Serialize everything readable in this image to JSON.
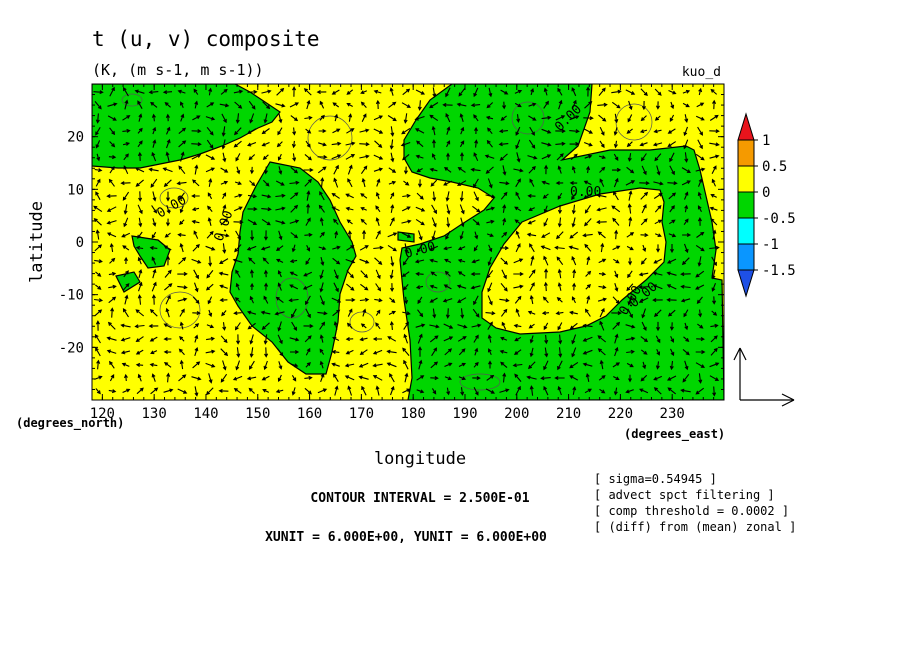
{
  "chart_data": {
    "type": "heatmap",
    "title": "t (u, v) composite",
    "subtitle": "(K, (m s-1, m s-1))",
    "corner_label": "kuo_d",
    "xlabel": "longitude",
    "ylabel": "latitude",
    "x_unit_label": "(degrees_east)",
    "y_unit_label": "(degrees_north)",
    "xlim": [
      118,
      240
    ],
    "ylim": [
      -30,
      30
    ],
    "x_ticks": [
      "120",
      "130",
      "140",
      "150",
      "160",
      "170",
      "180",
      "190",
      "200",
      "210",
      "220",
      "230"
    ],
    "x_tick_values": [
      120,
      130,
      140,
      150,
      160,
      170,
      180,
      190,
      200,
      210,
      220,
      230
    ],
    "y_ticks": [
      "20",
      "10",
      "0",
      "-10",
      "-20"
    ],
    "y_tick_values": [
      20,
      10,
      0,
      -10,
      -20
    ],
    "contour_labels": [
      "0.00",
      "0.00",
      "0.00",
      "0.00",
      "0.00",
      "0.00",
      "0.00"
    ],
    "colorbar": {
      "labels": [
        "1",
        "0.5",
        "0",
        "-0.5",
        "-1",
        "-1.5"
      ],
      "colors": [
        "#e8141c",
        "#f59a00",
        "#ffff00",
        "#00d600",
        "#00ffff",
        "#0a96ff",
        "#1e50e6"
      ]
    },
    "contour_interval_text": "CONTOUR INTERVAL = 2.500E-01",
    "unit_vector_text": "XUNIT = 6.000E+00, YUNIT = 6.000E+00",
    "notes": [
      "[ sigma=0.54945 ]",
      "[ advect spct filtering ]",
      "[ comp threshold = 0.0002 ]",
      "[ (diff) from (mean) zonal ]"
    ],
    "field_colors": {
      "positive": "#ffff00",
      "negative": "#00d600"
    }
  }
}
